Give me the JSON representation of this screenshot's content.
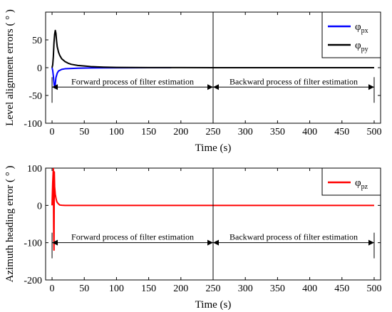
{
  "chart_data": [
    {
      "type": "line",
      "ylabel": "Level alignment errors ( ° )",
      "xlabel": "Time (s)",
      "xlim": [
        -10,
        510
      ],
      "ylim": [
        -100,
        100
      ],
      "xticks": [
        0,
        50,
        100,
        150,
        200,
        250,
        300,
        350,
        400,
        450,
        500
      ],
      "yticks": [
        -100,
        -50,
        0,
        50
      ],
      "grid": false,
      "legend_position": "top-right",
      "divider_x": 250,
      "annotations": [
        {
          "text": "Forward process of filter estimation",
          "from": 0,
          "to": 250,
          "y": -35
        },
        {
          "text": "Backward process of filter estimation",
          "from": 250,
          "to": 500,
          "y": -35
        }
      ],
      "series": [
        {
          "name": "φ",
          "sub": "px",
          "color": "#0000ff",
          "x": [
            0,
            1,
            2,
            3,
            4,
            5,
            6,
            8,
            10,
            15,
            20,
            30,
            40,
            60,
            80,
            120,
            150,
            185
          ],
          "y": [
            0,
            -5,
            -15,
            -28,
            -36,
            -30,
            -18,
            -10,
            -6,
            -3,
            -2,
            -1.5,
            -1,
            -0.5,
            -0.3,
            -0.1,
            0,
            0
          ]
        },
        {
          "name": "φ",
          "sub": "py",
          "color": "#000000",
          "x": [
            0,
            1,
            2,
            3,
            4,
            5,
            6,
            7,
            8,
            10,
            12,
            15,
            20,
            25,
            30,
            40,
            50,
            60,
            70,
            80,
            100,
            150,
            200,
            250,
            300,
            400,
            500
          ],
          "y": [
            0,
            5,
            20,
            45,
            60,
            67,
            62,
            48,
            38,
            28,
            22,
            16,
            11,
            8,
            6,
            4,
            3,
            2,
            1.5,
            1,
            0.5,
            0.2,
            0.1,
            0,
            0,
            0,
            0
          ]
        }
      ]
    },
    {
      "type": "line",
      "ylabel": "Azimuth heading error ( ° )",
      "xlabel": "Time (s)",
      "xlim": [
        -10,
        510
      ],
      "ylim": [
        -200,
        100
      ],
      "xticks": [
        0,
        50,
        100,
        150,
        200,
        250,
        300,
        350,
        400,
        450,
        500
      ],
      "yticks": [
        -200,
        -100,
        0,
        100
      ],
      "grid": false,
      "legend_position": "top-right",
      "divider_x": 250,
      "annotations": [
        {
          "text": "Forward process of filter estimation",
          "from": 0,
          "to": 250,
          "y": -100
        },
        {
          "text": "Backward process of filter estimation",
          "from": 250,
          "to": 500,
          "y": -100
        }
      ],
      "series": [
        {
          "name": "φ",
          "sub": "pz",
          "color": "#ff0000",
          "x": [
            0,
            1,
            2,
            2.5,
            3,
            3.5,
            4,
            4.5,
            5,
            6,
            7,
            8,
            10,
            12,
            15,
            20,
            50,
            100,
            200,
            300,
            400,
            500
          ],
          "y": [
            0,
            60,
            100,
            -60,
            -120,
            90,
            50,
            40,
            30,
            20,
            12,
            8,
            4,
            1,
            0.5,
            0,
            0,
            0,
            0,
            0,
            0,
            0
          ]
        }
      ]
    }
  ]
}
